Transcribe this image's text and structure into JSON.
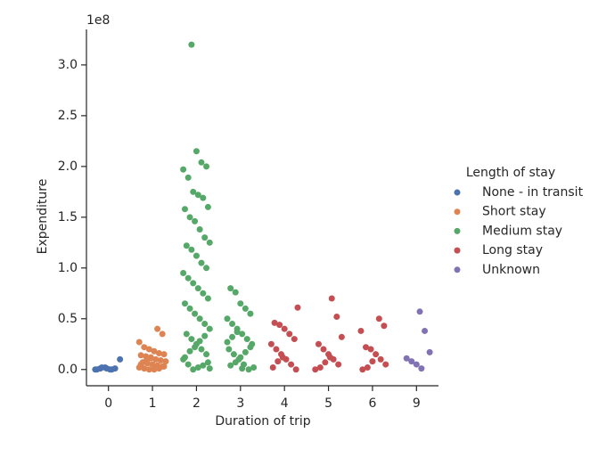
{
  "chart_data": {
    "type": "strip",
    "x_label": "Duration of trip",
    "y_label": "Expenditure",
    "y_offset_label": "1e8",
    "categories": [
      "0",
      "1",
      "2",
      "3",
      "4",
      "5",
      "6",
      "9"
    ],
    "ylim": [
      -0.16,
      3.35
    ],
    "yticks": [
      {
        "value": 0,
        "label": "0.0"
      },
      0.5,
      {
        "value": 1,
        "label": "1.0"
      },
      1.5,
      {
        "value": 2,
        "label": "2.0"
      },
      2.5,
      {
        "value": 3,
        "label": "3.0"
      }
    ],
    "legend_title": "Length of stay",
    "legend_position": "right",
    "series": [
      {
        "name": "None - in transit",
        "color": "#4c72b0",
        "x": [
          "0",
          "0",
          "0",
          "0",
          "0",
          "0",
          "0",
          "0",
          "0",
          "0"
        ],
        "values": [
          0.0,
          0.01,
          0.02,
          0.0,
          0.01,
          0.1,
          0.0,
          0.02,
          0.01,
          0.0
        ]
      },
      {
        "name": "Short stay",
        "color": "#dd8452",
        "x": [
          "1",
          "1",
          "1",
          "1",
          "1",
          "1",
          "1",
          "1",
          "1",
          "1",
          "1",
          "1",
          "1",
          "1",
          "1",
          "1",
          "1",
          "1",
          "1",
          "1",
          "1",
          "1",
          "1",
          "1",
          "1",
          "1",
          "1",
          "1"
        ],
        "values": [
          0.4,
          0.35,
          0.27,
          0.22,
          0.2,
          0.18,
          0.16,
          0.15,
          0.14,
          0.13,
          0.12,
          0.1,
          0.09,
          0.08,
          0.07,
          0.06,
          0.05,
          0.04,
          0.03,
          0.02,
          0.01,
          0.0,
          0.0,
          0.01,
          0.03,
          0.05,
          0.08,
          0.11
        ]
      },
      {
        "name": "Medium stay",
        "color": "#55a868",
        "x": [
          "2",
          "2",
          "2",
          "2",
          "2",
          "2",
          "2",
          "2",
          "2",
          "2",
          "2",
          "2",
          "2",
          "2",
          "2",
          "2",
          "2",
          "2",
          "2",
          "2",
          "2",
          "2",
          "2",
          "2",
          "2",
          "2",
          "2",
          "2",
          "2",
          "2",
          "2",
          "2",
          "2",
          "2",
          "2",
          "2",
          "2",
          "2",
          "2",
          "2",
          "2",
          "2",
          "2",
          "2",
          "2",
          "2",
          "2",
          "2",
          "2",
          "2",
          "3",
          "3",
          "3",
          "3",
          "3",
          "3",
          "3",
          "3",
          "3",
          "3",
          "3",
          "3",
          "3",
          "3",
          "3",
          "3",
          "3",
          "3",
          "3",
          "3",
          "3",
          "3",
          "3",
          "3",
          "3",
          "3"
        ],
        "values": [
          3.2,
          2.15,
          2.04,
          2.0,
          1.97,
          1.89,
          1.75,
          1.72,
          1.69,
          1.6,
          1.58,
          1.5,
          1.46,
          1.38,
          1.3,
          1.25,
          1.22,
          1.18,
          1.12,
          1.05,
          1.0,
          0.95,
          0.9,
          0.85,
          0.8,
          0.75,
          0.7,
          0.65,
          0.6,
          0.55,
          0.5,
          0.45,
          0.4,
          0.35,
          0.3,
          0.25,
          0.2,
          0.15,
          0.1,
          0.05,
          0.0,
          0.02,
          0.04,
          0.07,
          0.12,
          0.18,
          0.22,
          0.28,
          0.33,
          0.01,
          0.8,
          0.76,
          0.65,
          0.6,
          0.55,
          0.5,
          0.45,
          0.4,
          0.35,
          0.3,
          0.25,
          0.2,
          0.15,
          0.1,
          0.05,
          0.0,
          0.02,
          0.04,
          0.07,
          0.12,
          0.17,
          0.22,
          0.27,
          0.32,
          0.37,
          0.01
        ]
      },
      {
        "name": "Long stay",
        "color": "#c44e52",
        "x": [
          "4",
          "4",
          "4",
          "4",
          "4",
          "4",
          "4",
          "4",
          "4",
          "4",
          "4",
          "4",
          "4",
          "4",
          "4",
          "5",
          "5",
          "5",
          "5",
          "5",
          "5",
          "5",
          "5",
          "5",
          "5",
          "5",
          "5",
          "6",
          "6",
          "6",
          "6",
          "6",
          "6",
          "6",
          "6",
          "6",
          "6",
          "6"
        ],
        "values": [
          0.61,
          0.46,
          0.44,
          0.4,
          0.35,
          0.3,
          0.25,
          0.2,
          0.15,
          0.1,
          0.05,
          0.0,
          0.02,
          0.08,
          0.12,
          0.7,
          0.52,
          0.32,
          0.25,
          0.2,
          0.15,
          0.1,
          0.05,
          0.0,
          0.02,
          0.07,
          0.12,
          0.5,
          0.43,
          0.38,
          0.22,
          0.2,
          0.15,
          0.1,
          0.05,
          0.0,
          0.02,
          0.08
        ]
      },
      {
        "name": "Unknown",
        "color": "#8172b3",
        "x": [
          "9",
          "9",
          "9",
          "9",
          "9",
          "9",
          "9"
        ],
        "values": [
          0.57,
          0.38,
          0.17,
          0.11,
          0.08,
          0.05,
          0.01
        ]
      }
    ]
  }
}
